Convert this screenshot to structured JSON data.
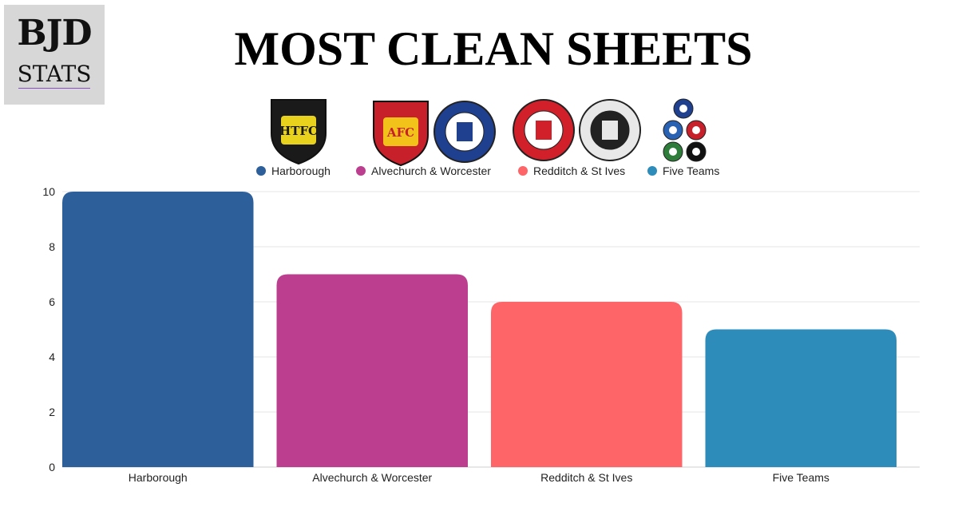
{
  "brand": {
    "logo_main": "BJD",
    "logo_sub": "STATS"
  },
  "crests": [
    {
      "name": "htfc-crest",
      "text": "HTFC",
      "fill": "#1a1a1a",
      "accent": "#e8d21e",
      "shape": "shield"
    },
    {
      "name": "afc-crest",
      "text": "AFC",
      "fill": "#c8202a",
      "accent": "#f2c21b",
      "shape": "shield"
    },
    {
      "name": "worcester-city-crest",
      "text": "",
      "fill": "#1f3f8f",
      "accent": "#ffffff",
      "shape": "circle"
    },
    {
      "name": "redditch-united-crest",
      "text": "",
      "fill": "#d2202a",
      "accent": "#ffffff",
      "shape": "circle"
    },
    {
      "name": "st-ives-town-crest",
      "text": "",
      "fill": "#e8e8e8",
      "accent": "#222222",
      "shape": "circle"
    }
  ],
  "chart_data": {
    "type": "bar",
    "title": "MOST CLEAN SHEETS",
    "categories": [
      "Harborough",
      "Alvechurch & Worcester",
      "Redditch & St Ives",
      "Five Teams"
    ],
    "series": [
      {
        "name": "Harborough",
        "values": [
          10,
          null,
          null,
          null
        ],
        "color": "#2d5f9a"
      },
      {
        "name": "Alvechurch & Worcester",
        "values": [
          null,
          7,
          null,
          null
        ],
        "color": "#bb3f8e"
      },
      {
        "name": "Redditch & St Ives",
        "values": [
          null,
          null,
          6,
          null
        ],
        "color": "#fe6568"
      },
      {
        "name": "Five Teams",
        "values": [
          null,
          null,
          null,
          5
        ],
        "color": "#2e8cbb"
      }
    ],
    "ylim": [
      0,
      10
    ],
    "yticks": [
      0,
      2,
      4,
      6,
      8,
      10
    ],
    "grid": true,
    "legend": "top"
  }
}
